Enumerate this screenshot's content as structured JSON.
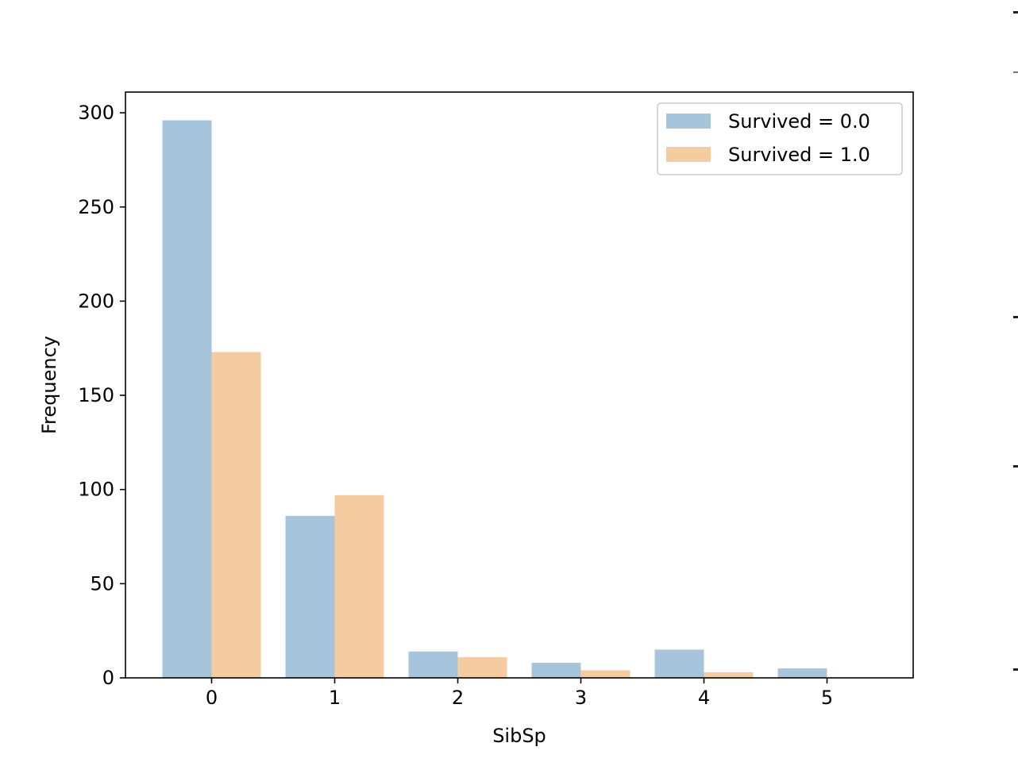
{
  "chart_data": {
    "type": "bar",
    "title": "",
    "xlabel": "SibSp",
    "ylabel": "Frequency",
    "categories": [
      "0",
      "1",
      "2",
      "3",
      "4",
      "5"
    ],
    "x": [
      0,
      1,
      2,
      3,
      4,
      5
    ],
    "series": [
      {
        "name": "Survived = 0.0",
        "color": "#a6c5dc",
        "values": [
          296,
          86,
          14,
          8,
          15,
          5
        ]
      },
      {
        "name": "Survived = 1.0",
        "color": "#f5cc9f",
        "values": [
          173,
          97,
          11,
          4,
          3,
          0
        ]
      }
    ],
    "xlim": [
      -0.7,
      5.7
    ],
    "ylim": [
      0,
      311
    ],
    "yticks": [
      0,
      50,
      100,
      150,
      200,
      250,
      300
    ],
    "xticks": [
      0,
      1,
      2,
      3,
      4,
      5
    ],
    "grid": false,
    "legend_position": "top-right"
  }
}
